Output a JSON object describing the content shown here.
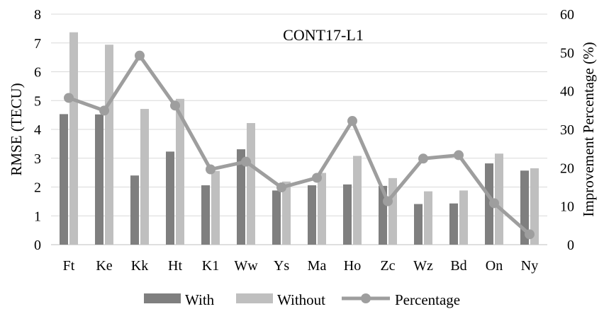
{
  "chart_data": {
    "type": "bar",
    "title": "CONT17-L1",
    "ylabel": "RMSE (TECU)",
    "y2label": "Improvement Percentage (%)",
    "xlabel": "",
    "categories": [
      "Ft",
      "Ke",
      "Kk",
      "Ht",
      "K1",
      "Ww",
      "Ys",
      "Ma",
      "Ho",
      "Zc",
      "Wz",
      "Bd",
      "On",
      "Ny"
    ],
    "ylim": [
      0,
      8
    ],
    "y2lim": [
      0,
      60
    ],
    "yticks": [
      "0",
      "1",
      "2",
      "3",
      "4",
      "5",
      "6",
      "7",
      "8"
    ],
    "y2ticks": [
      "0",
      "10",
      "20",
      "30",
      "40",
      "50",
      "60"
    ],
    "grid": true,
    "legend_position": "bottom",
    "series": [
      {
        "name": "With",
        "type": "bar",
        "axis": "left",
        "color": "#7f7f7f",
        "values": [
          4.53,
          4.52,
          2.4,
          3.23,
          2.06,
          3.31,
          1.88,
          2.06,
          2.09,
          2.04,
          1.41,
          1.43,
          2.82,
          2.57
        ]
      },
      {
        "name": "Without",
        "type": "bar",
        "axis": "left",
        "color": "#bfbfbf",
        "values": [
          7.37,
          6.94,
          4.71,
          5.06,
          2.56,
          4.22,
          2.19,
          2.49,
          3.08,
          2.31,
          1.85,
          1.88,
          3.16,
          2.65
        ]
      },
      {
        "name": "Percentage",
        "type": "line",
        "axis": "right",
        "color": "#9e9e9e",
        "values": [
          38.2,
          34.9,
          49.2,
          36.2,
          19.6,
          21.6,
          14.9,
          17.4,
          32.2,
          11.3,
          22.4,
          23.3,
          10.8,
          2.7
        ]
      }
    ]
  }
}
